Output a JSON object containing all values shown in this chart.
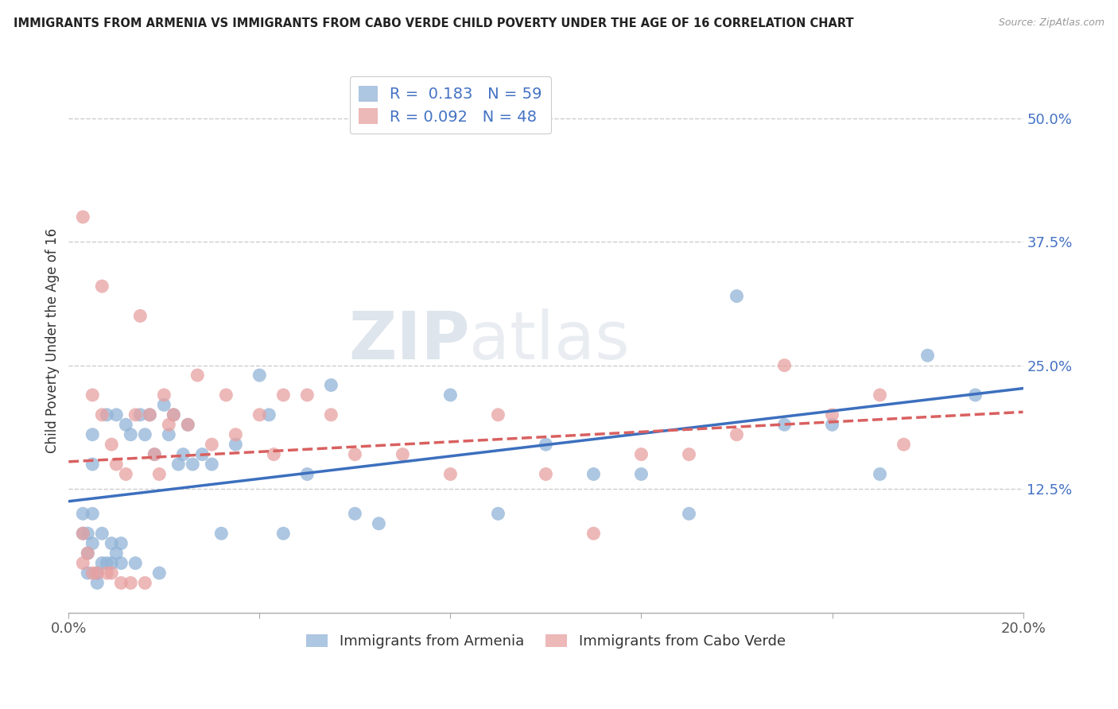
{
  "title": "IMMIGRANTS FROM ARMENIA VS IMMIGRANTS FROM CABO VERDE CHILD POVERTY UNDER THE AGE OF 16 CORRELATION CHART",
  "source": "Source: ZipAtlas.com",
  "ylabel": "Child Poverty Under the Age of 16",
  "xlim": [
    0.0,
    0.2
  ],
  "ylim": [
    0.0,
    0.55
  ],
  "legend1_R": "0.183",
  "legend1_N": "59",
  "legend2_R": "0.092",
  "legend2_N": "48",
  "color_armenia": "#92b4d7",
  "color_caboverde": "#e8a0a0",
  "line_color_armenia": "#3c6fbe",
  "line_color_caboverde": "#d96060",
  "watermark_left": "ZIP",
  "watermark_right": "atlas",
  "armenia_x": [
    0.003,
    0.003,
    0.004,
    0.004,
    0.004,
    0.005,
    0.005,
    0.005,
    0.005,
    0.006,
    0.006,
    0.007,
    0.007,
    0.008,
    0.008,
    0.009,
    0.009,
    0.01,
    0.01,
    0.011,
    0.011,
    0.012,
    0.013,
    0.014,
    0.015,
    0.016,
    0.017,
    0.018,
    0.019,
    0.02,
    0.021,
    0.022,
    0.023,
    0.024,
    0.025,
    0.026,
    0.028,
    0.03,
    0.032,
    0.035,
    0.04,
    0.042,
    0.045,
    0.05,
    0.055,
    0.06,
    0.065,
    0.08,
    0.09,
    0.1,
    0.11,
    0.12,
    0.13,
    0.14,
    0.15,
    0.16,
    0.17,
    0.18,
    0.19
  ],
  "armenia_y": [
    0.1,
    0.08,
    0.08,
    0.06,
    0.04,
    0.18,
    0.15,
    0.1,
    0.07,
    0.04,
    0.03,
    0.08,
    0.05,
    0.2,
    0.05,
    0.07,
    0.05,
    0.2,
    0.06,
    0.07,
    0.05,
    0.19,
    0.18,
    0.05,
    0.2,
    0.18,
    0.2,
    0.16,
    0.04,
    0.21,
    0.18,
    0.2,
    0.15,
    0.16,
    0.19,
    0.15,
    0.16,
    0.15,
    0.08,
    0.17,
    0.24,
    0.2,
    0.08,
    0.14,
    0.23,
    0.1,
    0.09,
    0.22,
    0.1,
    0.17,
    0.14,
    0.14,
    0.1,
    0.32,
    0.19,
    0.19,
    0.14,
    0.26,
    0.22
  ],
  "caboverde_x": [
    0.003,
    0.003,
    0.004,
    0.005,
    0.005,
    0.006,
    0.007,
    0.007,
    0.008,
    0.009,
    0.009,
    0.01,
    0.011,
    0.012,
    0.013,
    0.014,
    0.015,
    0.016,
    0.017,
    0.018,
    0.019,
    0.02,
    0.021,
    0.022,
    0.025,
    0.027,
    0.03,
    0.033,
    0.035,
    0.04,
    0.043,
    0.045,
    0.05,
    0.055,
    0.06,
    0.07,
    0.08,
    0.09,
    0.1,
    0.11,
    0.12,
    0.13,
    0.14,
    0.15,
    0.16,
    0.17,
    0.175,
    0.003
  ],
  "caboverde_y": [
    0.08,
    0.05,
    0.06,
    0.22,
    0.04,
    0.04,
    0.33,
    0.2,
    0.04,
    0.17,
    0.04,
    0.15,
    0.03,
    0.14,
    0.03,
    0.2,
    0.3,
    0.03,
    0.2,
    0.16,
    0.14,
    0.22,
    0.19,
    0.2,
    0.19,
    0.24,
    0.17,
    0.22,
    0.18,
    0.2,
    0.16,
    0.22,
    0.22,
    0.2,
    0.16,
    0.16,
    0.14,
    0.2,
    0.14,
    0.08,
    0.16,
    0.16,
    0.18,
    0.25,
    0.2,
    0.22,
    0.17,
    0.4
  ]
}
